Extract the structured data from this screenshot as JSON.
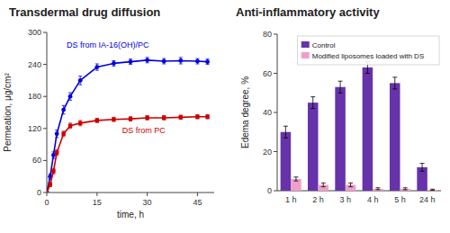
{
  "chart_data": [
    {
      "type": "line",
      "title": "Transdermal drug diffusion",
      "x_label": "time, h",
      "y_label": "Permeation, μg/cm²",
      "x": [
        0,
        1,
        2,
        3,
        5,
        7,
        10,
        15,
        20,
        25,
        30,
        35,
        40,
        45,
        48
      ],
      "series": [
        {
          "name": "DS from IA-16(OH)/PC",
          "color": "#0000dd",
          "marker": "circle",
          "values": [
            0,
            30,
            70,
            110,
            155,
            180,
            210,
            235,
            242,
            245,
            248,
            246,
            247,
            246,
            245
          ],
          "errors": [
            0,
            5,
            6,
            7,
            8,
            7,
            8,
            6,
            5,
            5,
            5,
            5,
            6,
            5,
            5
          ]
        },
        {
          "name": "DS from PC",
          "color": "#cc0000",
          "marker": "square",
          "values": [
            0,
            15,
            40,
            75,
            110,
            125,
            130,
            135,
            137,
            138,
            140,
            140,
            141,
            142,
            142
          ],
          "errors": [
            0,
            4,
            5,
            5,
            5,
            5,
            5,
            4,
            4,
            4,
            4,
            4,
            4,
            4,
            4
          ]
        }
      ],
      "xlim": [
        0,
        50
      ],
      "ylim": [
        0,
        300
      ],
      "xticks": [
        0,
        15,
        30,
        45
      ],
      "yticks": [
        0,
        60,
        120,
        180,
        240,
        300
      ]
    },
    {
      "type": "bar",
      "title": "Anti-inflammatory activity",
      "y_label": "Edema degree, %",
      "categories": [
        "1 h",
        "2 h",
        "3 h",
        "4 h",
        "5 h",
        "24 h"
      ],
      "series": [
        {
          "name": "Control",
          "color": "#6633aa",
          "values": [
            30,
            45,
            53,
            63,
            55,
            12
          ],
          "errors": [
            3,
            3,
            3,
            3,
            3,
            2
          ]
        },
        {
          "name": "Modified liposomes loaded with DS",
          "color": "#f0a0c8",
          "values": [
            6,
            3,
            3,
            1,
            1,
            0.5
          ],
          "errors": [
            1,
            1,
            1,
            0.5,
            0.5,
            0.3
          ]
        }
      ],
      "ylim": [
        0,
        80
      ],
      "yticks": [
        0,
        20,
        40,
        60,
        80
      ],
      "legend": "upper right"
    }
  ]
}
